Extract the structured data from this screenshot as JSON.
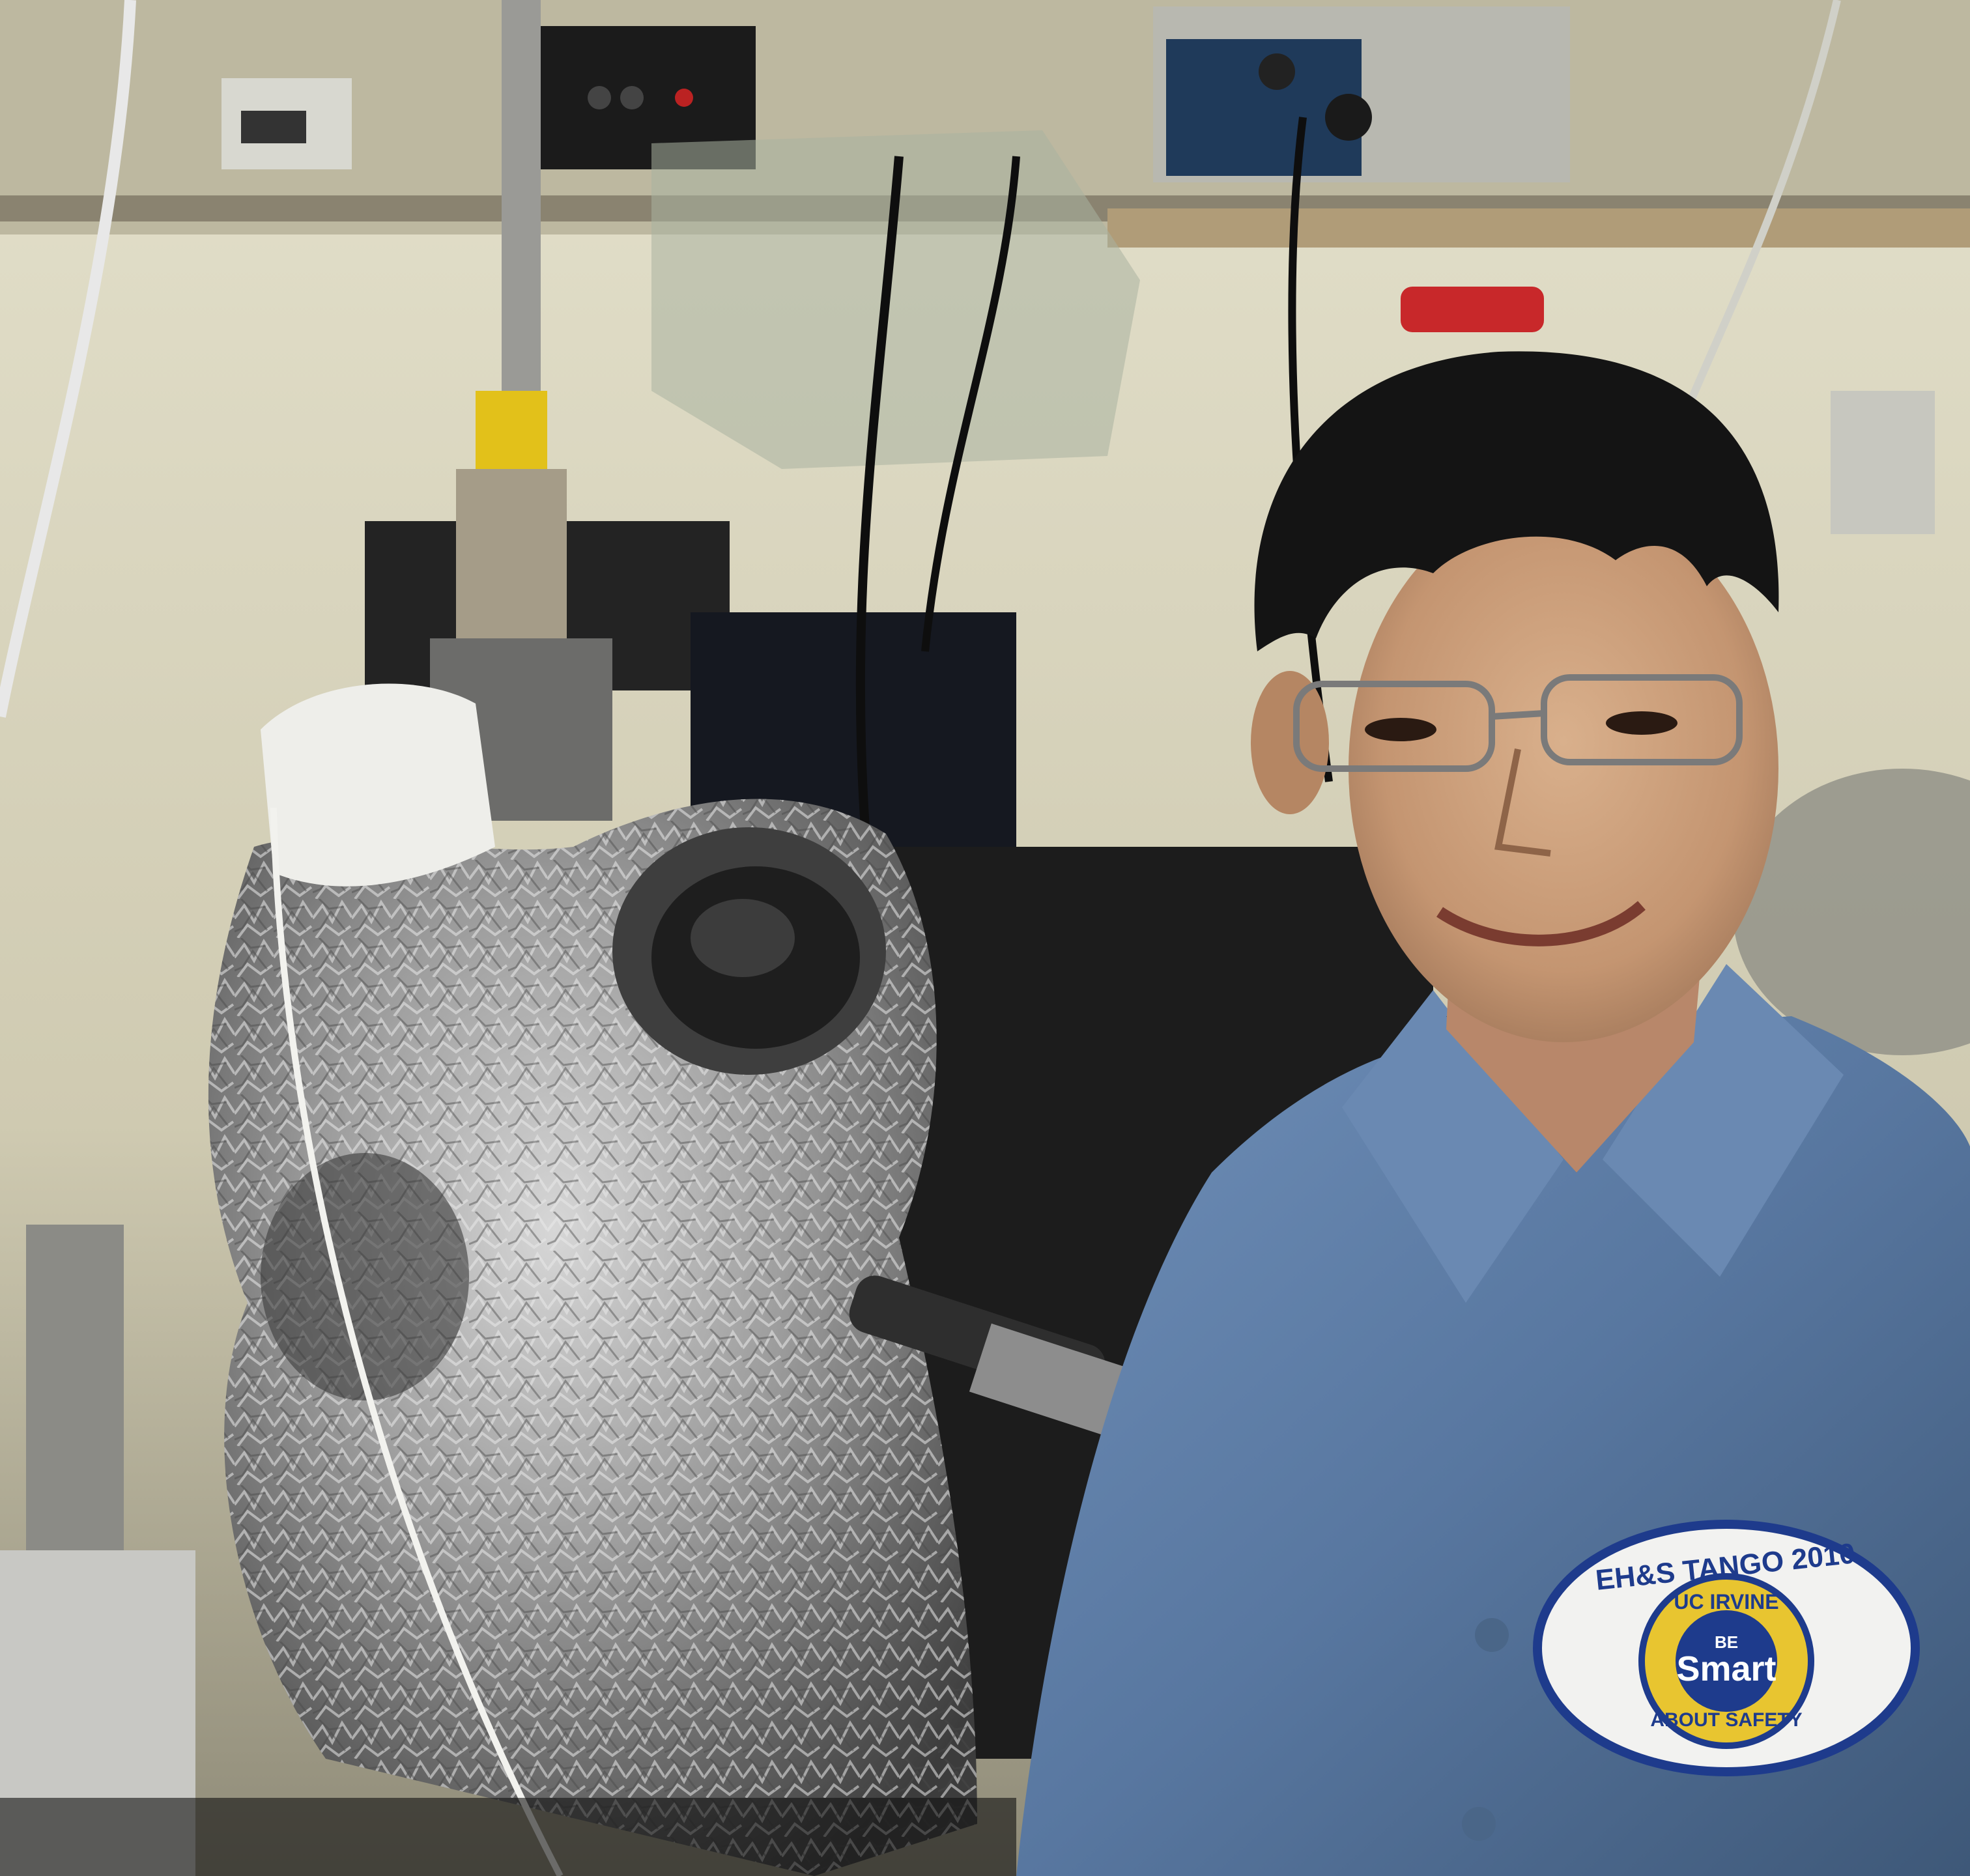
{
  "scene": {
    "kind": "photograph",
    "subject": "person in lab coat beside vacuum chamber"
  },
  "patch": {
    "line1": "EH&S TANGO 2010",
    "line2": "UC IRVINE",
    "line3": "BE",
    "line4": "Smart",
    "line5": "ABOUT SAFETY"
  },
  "colors": {
    "wall": "#d8d4bf",
    "foil": "#9a9a9a",
    "coat": "#5f7fa8",
    "hair": "#141414",
    "skin": "#c9a07e",
    "patch_blue": "#1e3b8c",
    "patch_yellow": "#e8c530"
  }
}
